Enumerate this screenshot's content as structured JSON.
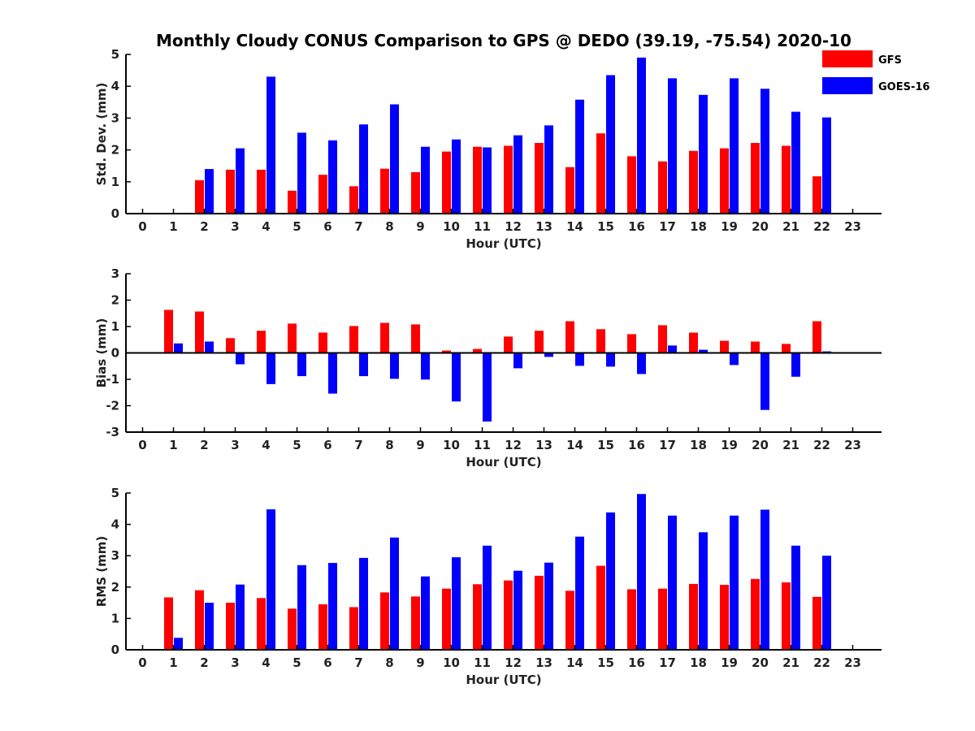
{
  "title": "Monthly Cloudy CONUS Comparison to GPS @ DEDO (39.19, -75.54) 2020-10",
  "colors": {
    "GFS": "#ff0000",
    "GOES-16": "#0000ff"
  },
  "legend": {
    "placement": "top-right",
    "entries": [
      "GFS",
      "GOES-16"
    ]
  },
  "chart_data": [
    {
      "type": "bar",
      "ylabel": "Std. Dev. (mm)",
      "xlabel": "Hour (UTC)",
      "ylim": [
        0,
        5
      ],
      "yticks": [
        0,
        1,
        2,
        3,
        4,
        5
      ],
      "categories": [
        "0",
        "1",
        "2",
        "3",
        "4",
        "5",
        "6",
        "7",
        "8",
        "9",
        "10",
        "11",
        "12",
        "13",
        "14",
        "15",
        "16",
        "17",
        "18",
        "19",
        "20",
        "21",
        "22",
        "23"
      ],
      "series": [
        {
          "name": "GFS",
          "values": [
            null,
            null,
            1.05,
            1.38,
            1.38,
            0.72,
            1.22,
            0.86,
            1.41,
            1.3,
            1.95,
            2.1,
            2.13,
            2.22,
            1.46,
            2.52,
            1.8,
            1.64,
            1.97,
            2.05,
            2.22,
            2.13,
            1.17,
            null
          ]
        },
        {
          "name": "GOES-16",
          "values": [
            null,
            null,
            1.4,
            2.05,
            4.3,
            2.54,
            2.3,
            2.8,
            3.43,
            2.1,
            2.33,
            2.08,
            2.46,
            2.77,
            3.58,
            4.35,
            4.9,
            4.25,
            3.73,
            4.25,
            3.92,
            3.2,
            3.02,
            null
          ]
        }
      ]
    },
    {
      "type": "bar",
      "ylabel": "Bias (mm)",
      "xlabel": "Hour (UTC)",
      "ylim": [
        -3,
        3
      ],
      "yticks": [
        -3,
        -2,
        -1,
        0,
        1,
        2,
        3
      ],
      "categories": [
        "0",
        "1",
        "2",
        "3",
        "4",
        "5",
        "6",
        "7",
        "8",
        "9",
        "10",
        "11",
        "12",
        "13",
        "14",
        "15",
        "16",
        "17",
        "18",
        "19",
        "20",
        "21",
        "22",
        "23"
      ],
      "series": [
        {
          "name": "GFS",
          "values": [
            null,
            1.63,
            1.57,
            0.56,
            0.84,
            1.11,
            0.77,
            1.02,
            1.14,
            1.08,
            0.09,
            0.15,
            0.62,
            0.84,
            1.2,
            0.9,
            0.71,
            1.05,
            0.77,
            0.46,
            0.43,
            0.34,
            1.2,
            null
          ]
        },
        {
          "name": "GOES-16",
          "values": [
            null,
            0.36,
            0.43,
            -0.43,
            -1.18,
            -0.88,
            -1.54,
            -0.88,
            -0.98,
            -1.01,
            -1.84,
            -2.6,
            -0.58,
            -0.15,
            -0.49,
            -0.52,
            -0.8,
            0.28,
            0.12,
            -0.46,
            -2.16,
            -0.9,
            0.06,
            null
          ]
        }
      ]
    },
    {
      "type": "bar",
      "ylabel": "RMS (mm)",
      "xlabel": "Hour (UTC)",
      "ylim": [
        0,
        5
      ],
      "yticks": [
        0,
        1,
        2,
        3,
        4,
        5
      ],
      "categories": [
        "0",
        "1",
        "2",
        "3",
        "4",
        "5",
        "6",
        "7",
        "8",
        "9",
        "10",
        "11",
        "12",
        "13",
        "14",
        "15",
        "16",
        "17",
        "18",
        "19",
        "20",
        "21",
        "22",
        "23"
      ],
      "series": [
        {
          "name": "GFS",
          "values": [
            null,
            1.67,
            1.9,
            1.5,
            1.65,
            1.31,
            1.45,
            1.36,
            1.83,
            1.7,
            1.95,
            2.09,
            2.21,
            2.36,
            1.88,
            2.68,
            1.93,
            1.95,
            2.1,
            2.07,
            2.26,
            2.15,
            1.69,
            null
          ]
        },
        {
          "name": "GOES-16",
          "values": [
            null,
            0.38,
            1.5,
            2.08,
            4.48,
            2.7,
            2.77,
            2.93,
            3.58,
            2.34,
            2.95,
            3.32,
            2.52,
            2.78,
            3.61,
            4.38,
            4.97,
            4.28,
            3.75,
            4.28,
            4.47,
            3.32,
            3.0,
            null
          ]
        }
      ]
    }
  ]
}
